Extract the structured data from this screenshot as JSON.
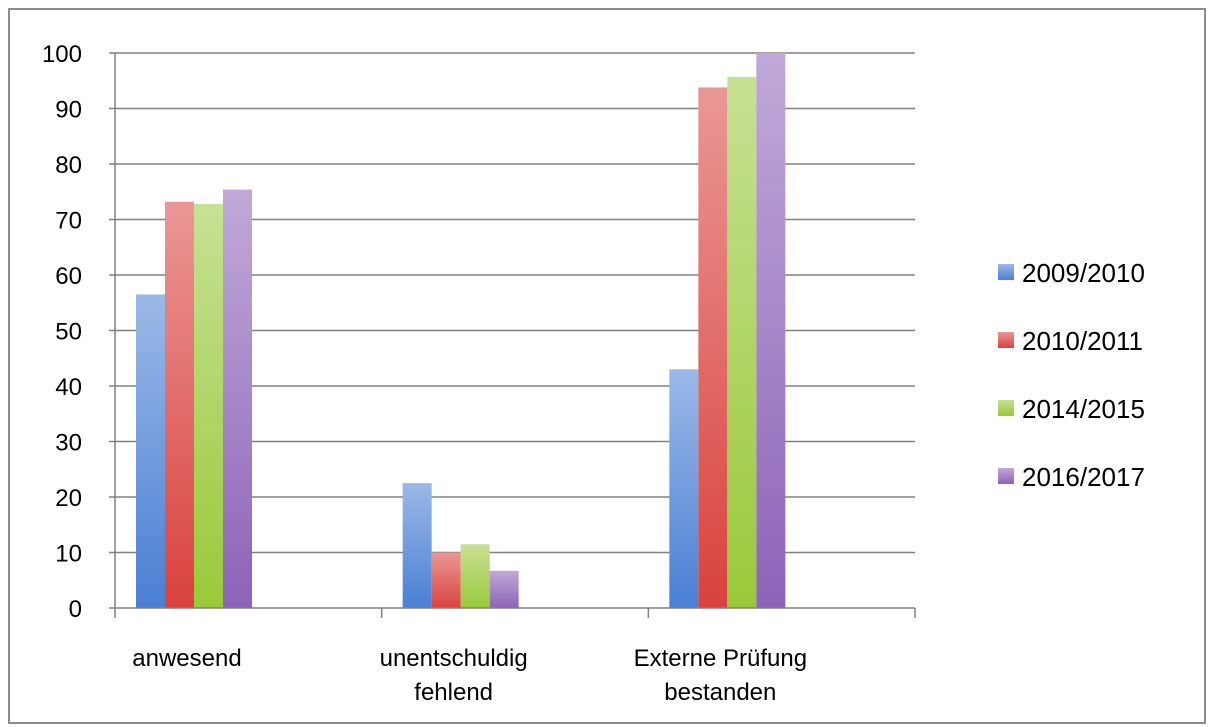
{
  "chart_data": {
    "type": "bar",
    "title": "",
    "xlabel": "",
    "ylabel": "",
    "ylim": [
      0,
      100
    ],
    "yticks": [
      "0",
      "10",
      "20",
      "30",
      "40",
      "50",
      "60",
      "70",
      "80",
      "90",
      "100"
    ],
    "grid": "horizontal",
    "legend_position": "right",
    "categories": [
      [
        "anwesend"
      ],
      [
        "unentschuldig",
        "fehlend"
      ],
      [
        "Externe Prüfung",
        "bestanden"
      ]
    ],
    "series": [
      {
        "name": "2009/2010",
        "color": "#4a7fd4",
        "values": [
          56.5,
          22.5,
          43
        ]
      },
      {
        "name": "2010/2011",
        "color": "#d9423e",
        "values": [
          73.2,
          10,
          93.8
        ]
      },
      {
        "name": "2014/2015",
        "color": "#99c93a",
        "values": [
          72.8,
          11.5,
          95.7
        ]
      },
      {
        "name": "2016/2017",
        "color": "#8d63b8",
        "values": [
          75.4,
          6.7,
          100
        ]
      }
    ]
  }
}
